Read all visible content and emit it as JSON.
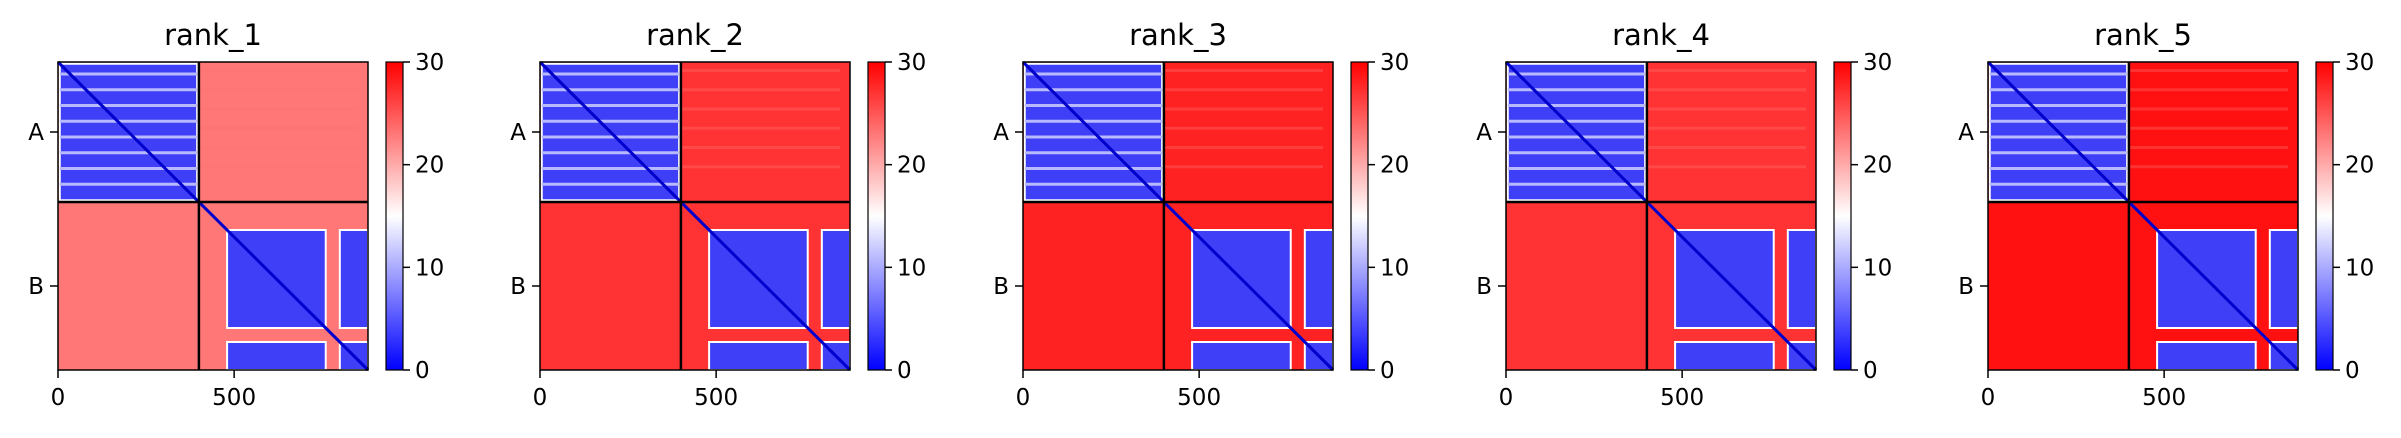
{
  "chart_data": [
    {
      "type": "heatmap",
      "title": "rank_1",
      "chains": [
        {
          "name": "A",
          "length": 400
        },
        {
          "name": "B",
          "length": 480
        }
      ],
      "xticks": [
        0,
        500
      ],
      "yticks": [
        "A",
        "B"
      ],
      "colorbar": {
        "range": [
          0,
          30
        ],
        "ticks": [
          0,
          10,
          20,
          30
        ],
        "colormap": "bwr",
        "colors": [
          "#0000ff",
          "#ffffff",
          "#ff0000"
        ]
      },
      "inter_chain_error": 23
    },
    {
      "type": "heatmap",
      "title": "rank_2",
      "chains": [
        {
          "name": "A",
          "length": 400
        },
        {
          "name": "B",
          "length": 480
        }
      ],
      "xticks": [
        0,
        500
      ],
      "yticks": [
        "A",
        "B"
      ],
      "colorbar": {
        "range": [
          0,
          30
        ],
        "ticks": [
          0,
          10,
          20,
          30
        ],
        "colormap": "bwr",
        "colors": [
          "#0000ff",
          "#ffffff",
          "#ff0000"
        ]
      },
      "inter_chain_error": 27
    },
    {
      "type": "heatmap",
      "title": "rank_3",
      "chains": [
        {
          "name": "A",
          "length": 400
        },
        {
          "name": "B",
          "length": 480
        }
      ],
      "xticks": [
        0,
        500
      ],
      "yticks": [
        "A",
        "B"
      ],
      "colorbar": {
        "range": [
          0,
          30
        ],
        "ticks": [
          0,
          10,
          20,
          30
        ],
        "colormap": "bwr",
        "colors": [
          "#0000ff",
          "#ffffff",
          "#ff0000"
        ]
      },
      "inter_chain_error": 28
    },
    {
      "type": "heatmap",
      "title": "rank_4",
      "chains": [
        {
          "name": "A",
          "length": 400
        },
        {
          "name": "B",
          "length": 480
        }
      ],
      "xticks": [
        0,
        500
      ],
      "yticks": [
        "A",
        "B"
      ],
      "colorbar": {
        "range": [
          0,
          30
        ],
        "ticks": [
          0,
          10,
          20,
          30
        ],
        "colormap": "bwr",
        "colors": [
          "#0000ff",
          "#ffffff",
          "#ff0000"
        ]
      },
      "inter_chain_error": 27
    },
    {
      "type": "heatmap",
      "title": "rank_5",
      "chains": [
        {
          "name": "A",
          "length": 400
        },
        {
          "name": "B",
          "length": 480
        }
      ],
      "xticks": [
        0,
        500
      ],
      "yticks": [
        "A",
        "B"
      ],
      "colorbar": {
        "range": [
          0,
          30
        ],
        "ticks": [
          0,
          10,
          20,
          30
        ],
        "colormap": "bwr",
        "colors": [
          "#0000ff",
          "#ffffff",
          "#ff0000"
        ]
      },
      "inter_chain_error": 29
    }
  ]
}
